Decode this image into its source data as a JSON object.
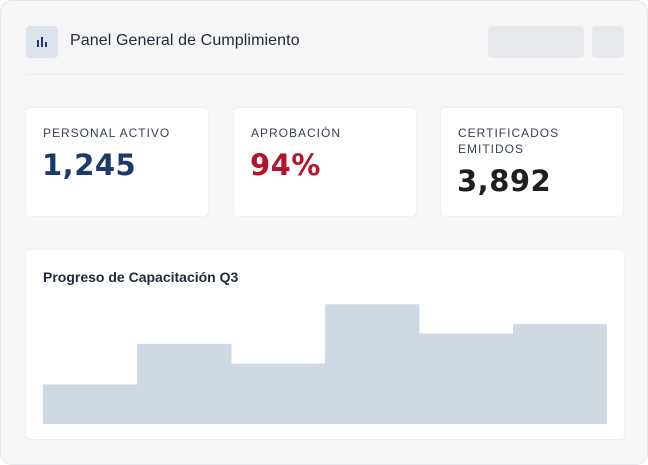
{
  "header": {
    "title": "Panel General de Cumplimiento",
    "logo_icon": "bar-chart-icon"
  },
  "kpis": [
    {
      "label": "PERSONAL ACTIVO",
      "value": "1,245",
      "color": "#1b3a6b"
    },
    {
      "label": "APROBACIÓN",
      "value": "94%",
      "color": "#b5122b"
    },
    {
      "label": "CERTIFICADOS EMITIDOS",
      "value": "3,892",
      "color": "#1f1f1f"
    }
  ],
  "chart": {
    "title": "Progreso de Capacitación Q3",
    "bar_color": "#cfd9e3"
  },
  "chart_data": {
    "type": "bar",
    "title": "Progreso de Capacitación Q3",
    "categories": [
      "",
      "",
      "",
      "",
      "",
      ""
    ],
    "values": [
      42,
      85,
      64,
      127,
      96,
      106
    ],
    "ylim": [
      0,
      140
    ],
    "grid": false,
    "legend": "none"
  }
}
